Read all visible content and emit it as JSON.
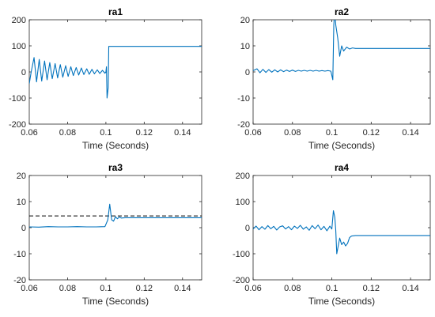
{
  "colors": {
    "series": "#0072BD",
    "reference": "#000000",
    "axis": "#262626"
  },
  "chart_data": [
    {
      "type": "line",
      "title": "ra1",
      "xlabel": "Time (Seconds)",
      "xlim": [
        0.06,
        0.15
      ],
      "ylim": [
        -200,
        200
      ],
      "xticks": [
        0.06,
        0.08,
        0.1,
        0.12,
        0.14
      ],
      "xtick_labels": [
        "0.06",
        "0.08",
        "0.1",
        "0.12",
        "0.14"
      ],
      "yticks": [
        -200,
        -100,
        0,
        100,
        200
      ],
      "ytick_labels": [
        "-200",
        "-100",
        "0",
        "100",
        "200"
      ],
      "series": [
        {
          "x": [
            0.06,
            0.061,
            0.0625,
            0.0638,
            0.0652,
            0.0665,
            0.068,
            0.0693,
            0.0707,
            0.072,
            0.0735,
            0.0748,
            0.0762,
            0.0775,
            0.079,
            0.0803,
            0.0817,
            0.083,
            0.0845,
            0.0858,
            0.0872,
            0.0885,
            0.09,
            0.0913,
            0.0927,
            0.094,
            0.0955,
            0.0968,
            0.0982,
            0.0995,
            0.1,
            0.1003,
            0.1006,
            0.1012,
            0.1015,
            0.15
          ],
          "y": [
            -45,
            0,
            55,
            -38,
            48,
            -35,
            42,
            -30,
            36,
            -26,
            32,
            -23,
            28,
            -20,
            24,
            -17,
            20,
            -14,
            17,
            -12,
            15,
            -10,
            12,
            -9,
            10,
            -7,
            8,
            -6,
            6,
            -5,
            0,
            20,
            -100,
            -60,
            98,
            98
          ]
        }
      ]
    },
    {
      "type": "line",
      "title": "ra2",
      "xlabel": "Time (Seconds)",
      "xlim": [
        0.06,
        0.15
      ],
      "ylim": [
        -20,
        20
      ],
      "xticks": [
        0.06,
        0.08,
        0.1,
        0.12,
        0.14
      ],
      "xtick_labels": [
        "0.06",
        "0.08",
        "0.1",
        "0.12",
        "0.14"
      ],
      "yticks": [
        -20,
        -10,
        0,
        10,
        20
      ],
      "ytick_labels": [
        "-20",
        "-10",
        "0",
        "10",
        "20"
      ],
      "series": [
        {
          "x": [
            0.06,
            0.062,
            0.0635,
            0.065,
            0.0665,
            0.068,
            0.0695,
            0.071,
            0.0725,
            0.074,
            0.0755,
            0.077,
            0.0785,
            0.08,
            0.0815,
            0.083,
            0.0845,
            0.086,
            0.0875,
            0.089,
            0.0905,
            0.092,
            0.0935,
            0.095,
            0.0965,
            0.098,
            0.0995,
            0.1005,
            0.101,
            0.1015,
            0.102,
            0.103,
            0.104,
            0.105,
            0.106,
            0.1075,
            0.109,
            0.1105,
            0.112,
            0.15
          ],
          "y": [
            0.5,
            1.2,
            -0.3,
            1.0,
            -0.2,
            0.9,
            -0.1,
            0.8,
            0.0,
            0.8,
            0.1,
            0.7,
            0.2,
            0.7,
            0.2,
            0.6,
            0.3,
            0.6,
            0.3,
            0.6,
            0.3,
            0.6,
            0.3,
            0.5,
            0.3,
            0.5,
            0.3,
            -3,
            18,
            24,
            18,
            13,
            6,
            10,
            8,
            9.5,
            8.8,
            9.2,
            9.0,
            9.0
          ]
        }
      ]
    },
    {
      "type": "line",
      "title": "ra3",
      "xlabel": "Time (Seconds)",
      "xlim": [
        0.06,
        0.15
      ],
      "ylim": [
        -20,
        20
      ],
      "xticks": [
        0.06,
        0.08,
        0.1,
        0.12,
        0.14
      ],
      "xtick_labels": [
        "0.06",
        "0.08",
        "0.1",
        "0.12",
        "0.14"
      ],
      "yticks": [
        -20,
        -10,
        0,
        10,
        20
      ],
      "ytick_labels": [
        "-20",
        "-10",
        "0",
        "10",
        "20"
      ],
      "reference": {
        "y": 4.5,
        "style": "dashed"
      },
      "series": [
        {
          "x": [
            0.06,
            0.065,
            0.07,
            0.075,
            0.08,
            0.085,
            0.09,
            0.095,
            0.0995,
            0.101,
            0.102,
            0.103,
            0.104,
            0.105,
            0.106,
            0.107,
            0.108,
            0.11,
            0.15
          ],
          "y": [
            0.3,
            0.2,
            0.4,
            0.3,
            0.3,
            0.4,
            0.3,
            0.3,
            0.4,
            3,
            9,
            3,
            2.5,
            4.2,
            3.4,
            4.1,
            3.7,
            3.8,
            3.8
          ]
        }
      ]
    },
    {
      "type": "line",
      "title": "ra4",
      "xlabel": "Time (Seconds)",
      "xlim": [
        0.06,
        0.15
      ],
      "ylim": [
        -200,
        200
      ],
      "xticks": [
        0.06,
        0.08,
        0.1,
        0.12,
        0.14
      ],
      "xtick_labels": [
        "0.06",
        "0.08",
        "0.1",
        "0.12",
        "0.14"
      ],
      "yticks": [
        -200,
        -100,
        0,
        100,
        200
      ],
      "ytick_labels": [
        "-200",
        "-100",
        "0",
        "100",
        "200"
      ],
      "series": [
        {
          "x": [
            0.06,
            0.0615,
            0.063,
            0.0645,
            0.066,
            0.0675,
            0.069,
            0.0705,
            0.072,
            0.0735,
            0.075,
            0.0765,
            0.078,
            0.0795,
            0.081,
            0.0825,
            0.084,
            0.0855,
            0.087,
            0.0885,
            0.09,
            0.0915,
            0.093,
            0.0945,
            0.096,
            0.0975,
            0.099,
            0.1,
            0.1008,
            0.1015,
            0.102,
            0.1025,
            0.103,
            0.104,
            0.105,
            0.106,
            0.107,
            0.108,
            0.109,
            0.11,
            0.112,
            0.15
          ],
          "y": [
            -5,
            6,
            -8,
            4,
            -6,
            8,
            -4,
            5,
            -9,
            3,
            7,
            -5,
            4,
            -8,
            6,
            -3,
            9,
            -6,
            3,
            -10,
            8,
            -4,
            10,
            -8,
            5,
            -12,
            6,
            -5,
            65,
            40,
            -10,
            -100,
            -80,
            -40,
            -65,
            -55,
            -70,
            -60,
            -38,
            -32,
            -30,
            -30
          ]
        }
      ]
    }
  ]
}
